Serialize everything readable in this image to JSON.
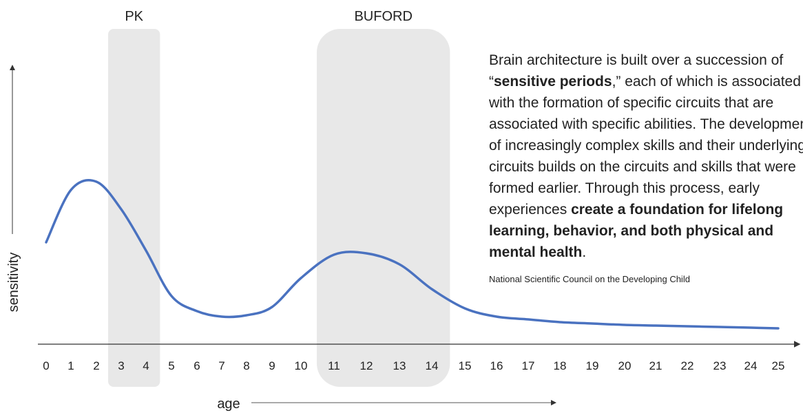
{
  "chart_data": {
    "type": "line",
    "x_label": "age",
    "y_label": "sensitivity",
    "categories": [
      "0",
      "1",
      "2",
      "3",
      "4",
      "5",
      "6",
      "7",
      "8",
      "9",
      "10",
      "11",
      "12",
      "13",
      "14",
      "15",
      "16",
      "17",
      "18",
      "19",
      "20",
      "21",
      "22",
      "23",
      "24",
      "25"
    ],
    "series": [
      {
        "color": "#4a72c0",
        "values": [
          37,
          56,
          59,
          49,
          34,
          17.5,
          12,
          10,
          10.5,
          13.5,
          24,
          32.5,
          33,
          29,
          20,
          13,
          10,
          9,
          8,
          7.5,
          7,
          6.75,
          6.5,
          6.25,
          6,
          5.75
        ]
      }
    ],
    "ylim": [
      0,
      100
    ],
    "highlights": [
      {
        "label": "PK",
        "from": 3,
        "to": 4
      },
      {
        "label": "BUFORD",
        "from": 11,
        "to": 14
      }
    ],
    "text": [
      "Brain architecture is built over a succession of “",
      "sensitive periods",
      ",” each of which is associated with the formation of specific circuits that are associated with specific abilities. The development of increasingly complex skills and their underlying circuits builds on the circuits and skills that were formed earlier. Through this process, early experiences ",
      "create a foundation for lifelong learning, behavior, and both physical and mental health",
      "."
    ],
    "source": "National Scientific Council on the Developing Child"
  }
}
